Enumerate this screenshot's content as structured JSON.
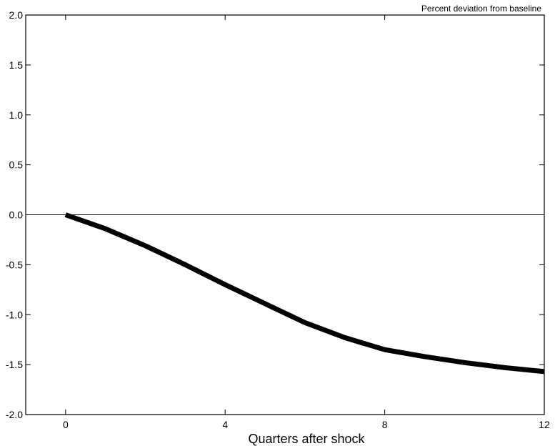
{
  "chart_data": {
    "type": "line",
    "title": "",
    "units_label": "Percent deviation from baseline",
    "xlabel": "Quarters after shock",
    "ylabel": "",
    "xlim": [
      -1,
      12
    ],
    "ylim": [
      -2.0,
      2.0
    ],
    "x_ticks": [
      0,
      4,
      8,
      12
    ],
    "x_tick_labels": [
      "0",
      "4",
      "8",
      "12"
    ],
    "y_ticks": [
      2.0,
      1.5,
      1.0,
      0.5,
      0.0,
      -0.5,
      -1.0,
      -1.5,
      -2.0
    ],
    "y_tick_labels": [
      "2.0",
      "1.5",
      "1.0",
      "0.5",
      "0.0",
      "-0.5",
      "-1.0",
      "-1.5",
      "-2.0"
    ],
    "zero_line": true,
    "grid": false,
    "series": [
      {
        "x": [
          0,
          1,
          2,
          3,
          4,
          5,
          6,
          7,
          8,
          9,
          10,
          11,
          12
        ],
        "values": [
          0.0,
          -0.14,
          -0.31,
          -0.5,
          -0.7,
          -0.89,
          -1.08,
          -1.23,
          -1.35,
          -1.42,
          -1.48,
          -1.53,
          -1.57
        ],
        "color": "#000000"
      }
    ]
  }
}
